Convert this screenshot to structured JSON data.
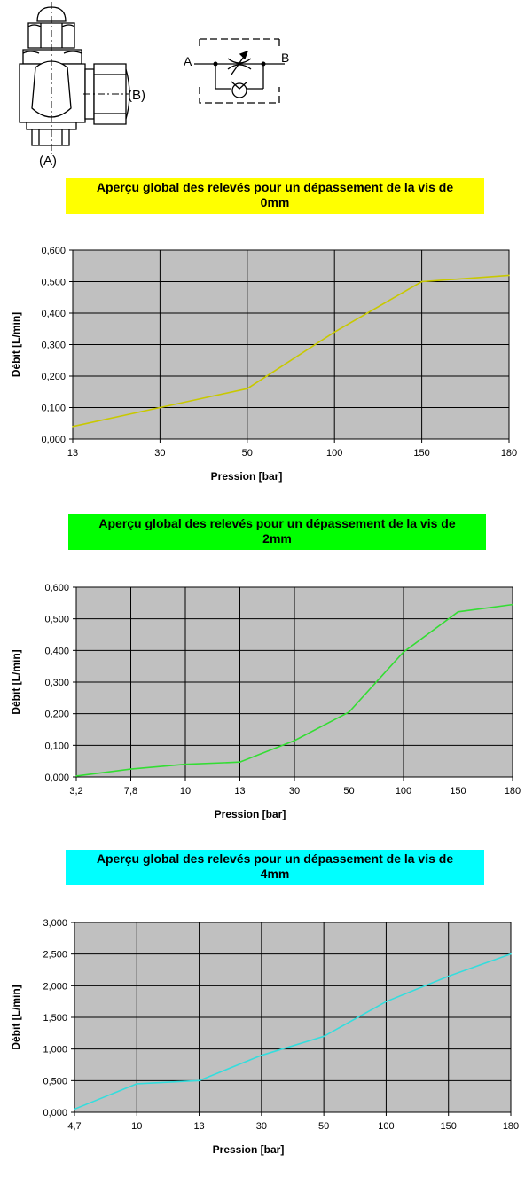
{
  "drawings": {
    "fitting": {
      "label_a": "(A)",
      "label_b": "(B)"
    },
    "symbol": {
      "label_a": "A",
      "label_b": "B"
    }
  },
  "colors": {
    "plot_bg": "#c0c0c0",
    "grid": "#000000",
    "banner_0": "#ffff00",
    "banner_2": "#00ff00",
    "banner_4": "#00ffff",
    "line_0": "#c8c800",
    "line_2": "#33dd33",
    "line_4": "#33dddd"
  },
  "chart_data": [
    {
      "type": "line",
      "title_line1": "Aperçu global des relevés pour un dépassement de la vis de",
      "title_line2": "0mm",
      "xlabel": "Pression [bar]",
      "ylabel": "Débit [L/min]",
      "categories": [
        "13",
        "30",
        "50",
        "100",
        "150",
        "180"
      ],
      "values": [
        0.04,
        0.1,
        0.16,
        0.34,
        0.5,
        0.52
      ],
      "ylim": [
        0,
        0.6
      ],
      "yticks": [
        "0,000",
        "0,100",
        "0,200",
        "0,300",
        "0,400",
        "0,500",
        "0,600"
      ],
      "grid": true
    },
    {
      "type": "line",
      "title_line1": "Aperçu global des relevés pour un dépassement de la vis de",
      "title_line2": "2mm",
      "xlabel": "Pression [bar]",
      "ylabel": "Débit [L/min]",
      "categories": [
        "3,2",
        "7,8",
        "10",
        "13",
        "30",
        "50",
        "100",
        "150",
        "180"
      ],
      "values": [
        0.003,
        0.025,
        0.04,
        0.047,
        0.115,
        0.205,
        0.395,
        0.522,
        0.545
      ],
      "ylim": [
        0,
        0.6
      ],
      "yticks": [
        "0,000",
        "0,100",
        "0,200",
        "0,300",
        "0,400",
        "0,500",
        "0,600"
      ],
      "grid": true
    },
    {
      "type": "line",
      "title_line1": "Aperçu global des relevés pour un dépassement de la vis de",
      "title_line2": "4mm",
      "xlabel": "Pression [bar]",
      "ylabel": "Débit [L/min]",
      "categories": [
        "4,7",
        "10",
        "13",
        "30",
        "50",
        "100",
        "150",
        "180"
      ],
      "values": [
        0.05,
        0.45,
        0.5,
        0.9,
        1.2,
        1.75,
        2.15,
        2.5
      ],
      "ylim": [
        0,
        3
      ],
      "yticks": [
        "0,000",
        "0,500",
        "1,000",
        "1,500",
        "2,000",
        "2,500",
        "3,000"
      ],
      "grid": true
    }
  ]
}
